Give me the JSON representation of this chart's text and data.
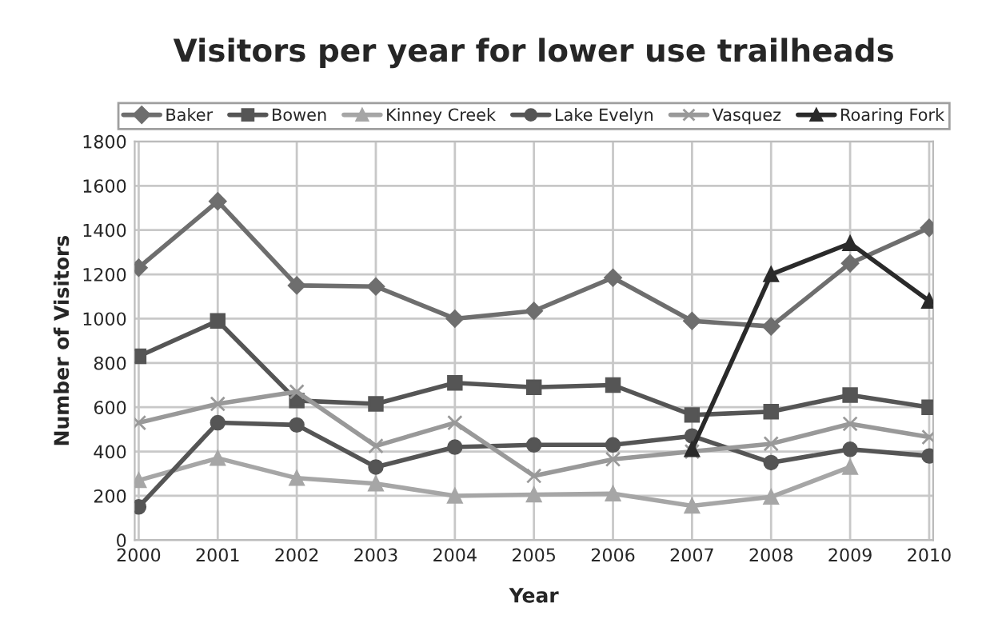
{
  "chart_data": {
    "type": "line",
    "title": "Visitors per year for lower use trailheads",
    "xlabel": "Year",
    "ylabel": "Number of Visitors",
    "categories": [
      "2000",
      "2001",
      "2002",
      "2003",
      "2004",
      "2005",
      "2006",
      "2007",
      "2008",
      "2009",
      "2010"
    ],
    "series": [
      {
        "name": "Baker",
        "color": "#6e6e6e",
        "marker": "diamond",
        "values": [
          1230,
          1530,
          1150,
          1145,
          1000,
          1035,
          1185,
          990,
          965,
          1250,
          1410
        ]
      },
      {
        "name": "Bowen",
        "color": "#555555",
        "marker": "square",
        "values": [
          830,
          990,
          630,
          615,
          710,
          690,
          700,
          565,
          580,
          655,
          600
        ]
      },
      {
        "name": "Kinney Creek",
        "color": "#a6a6a6",
        "marker": "triangle",
        "values": [
          270,
          370,
          280,
          255,
          200,
          205,
          210,
          155,
          195,
          330,
          null
        ]
      },
      {
        "name": "Lake Evelyn",
        "color": "#555555",
        "marker": "circle",
        "values": [
          150,
          530,
          520,
          330,
          420,
          430,
          430,
          470,
          350,
          410,
          380
        ]
      },
      {
        "name": "Vasquez",
        "color": "#999999",
        "marker": "cross",
        "values": [
          530,
          615,
          670,
          425,
          530,
          290,
          365,
          400,
          435,
          525,
          465
        ]
      },
      {
        "name": "Roaring Fork",
        "color": "#2a2a2a",
        "marker": "triangle",
        "values": [
          null,
          null,
          null,
          null,
          null,
          null,
          null,
          410,
          1200,
          1340,
          1080
        ]
      }
    ],
    "ylim": [
      0,
      1800
    ],
    "yticks": [
      0,
      200,
      400,
      600,
      800,
      1000,
      1200,
      1400,
      1600,
      1800
    ],
    "grid": true,
    "legend": "top"
  }
}
